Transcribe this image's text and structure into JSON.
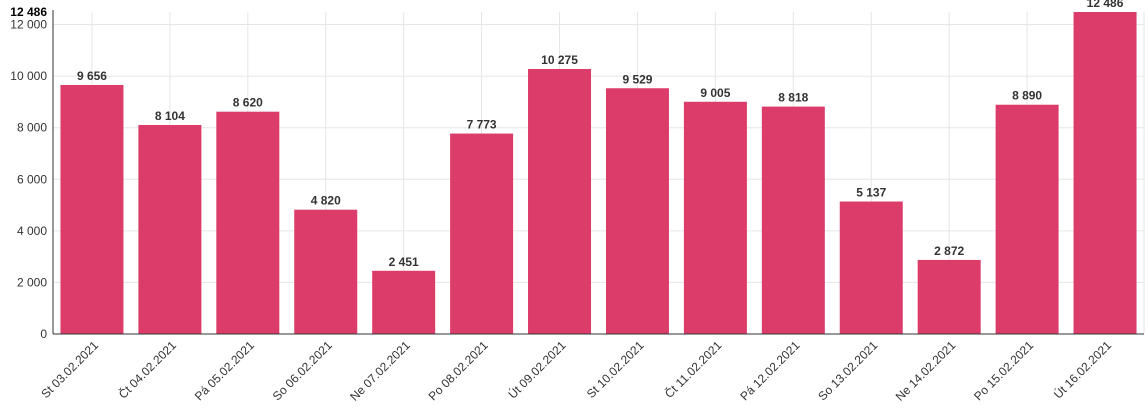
{
  "chart_data": {
    "type": "bar",
    "categories": [
      "St 03.02.2021",
      "Čt 04.02.2021",
      "Pá 05.02.2021",
      "So 06.02.2021",
      "Ne 07.02.2021",
      "Po 08.02.2021",
      "Út 09.02.2021",
      "St 10.02.2021",
      "Čt 11.02.2021",
      "Pá 12.02.2021",
      "So 13.02.2021",
      "Ne 14.02.2021",
      "Po 15.02.2021",
      "Út 16.02.2021"
    ],
    "values": [
      9656,
      8104,
      8620,
      4820,
      2451,
      7773,
      10275,
      9529,
      9005,
      8818,
      5137,
      2872,
      8890,
      12486
    ],
    "value_labels": [
      "9 656",
      "8 104",
      "8 620",
      "4 820",
      "2 451",
      "7 773",
      "10 275",
      "9 529",
      "9 005",
      "8 818",
      "5 137",
      "2 872",
      "8 890",
      "12 486"
    ],
    "y_ticks": [
      0,
      2000,
      4000,
      6000,
      8000,
      10000,
      12000
    ],
    "y_tick_labels": [
      "0",
      "2 000",
      "4 000",
      "6 000",
      "8 000",
      "10 000",
      "12 000"
    ],
    "y_max_value": 12486,
    "y_max_label": "12 486",
    "ylim": [
      0,
      12486
    ],
    "title": "",
    "xlabel": "",
    "ylabel": "",
    "grid": true,
    "bar_color": "#dc3c69",
    "grid_color": "#e6e6e6"
  }
}
